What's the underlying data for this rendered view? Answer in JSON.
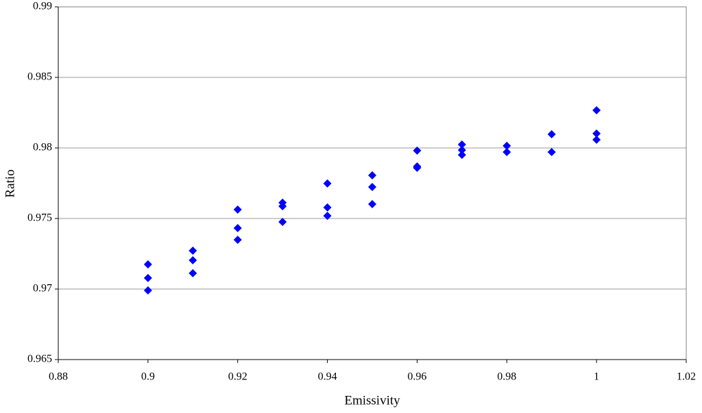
{
  "chart_data": {
    "type": "scatter",
    "x_label": "Emissivity",
    "y_label": "Ratio",
    "color": "#0000ff",
    "grid": true,
    "xlim": [
      0.88,
      1.02
    ],
    "xticks": [
      0.88,
      0.9,
      0.92,
      0.94,
      0.96,
      0.98,
      1,
      1.02
    ],
    "ylim": [
      0.965,
      0.99
    ],
    "yticks": [
      0.965,
      0.97,
      0.975,
      0.98,
      0.985,
      0.99
    ],
    "x": [
      0.9,
      0.9,
      0.9,
      0.91,
      0.91,
      0.91,
      0.92,
      0.92,
      0.92,
      0.93,
      0.93,
      0.93,
      0.94,
      0.94,
      0.94,
      0.95,
      0.95,
      0.95,
      0.96,
      0.96,
      0.96,
      0.97,
      0.97,
      0.97,
      0.98,
      0.98,
      0.99,
      0.99,
      1,
      1,
      1
    ],
    "values": [
      0.97175,
      0.97078,
      0.9699,
      0.97272,
      0.97204,
      0.97112,
      0.97563,
      0.97432,
      0.97349,
      0.97612,
      0.97587,
      0.97476,
      0.97748,
      0.97578,
      0.97519,
      0.97806,
      0.97723,
      0.97602,
      0.97981,
      0.97869,
      0.97859,
      0.98024,
      0.97985,
      0.97951,
      0.98015,
      0.97971,
      0.98097,
      0.97971,
      0.98267,
      0.98102,
      0.98058
    ]
  }
}
